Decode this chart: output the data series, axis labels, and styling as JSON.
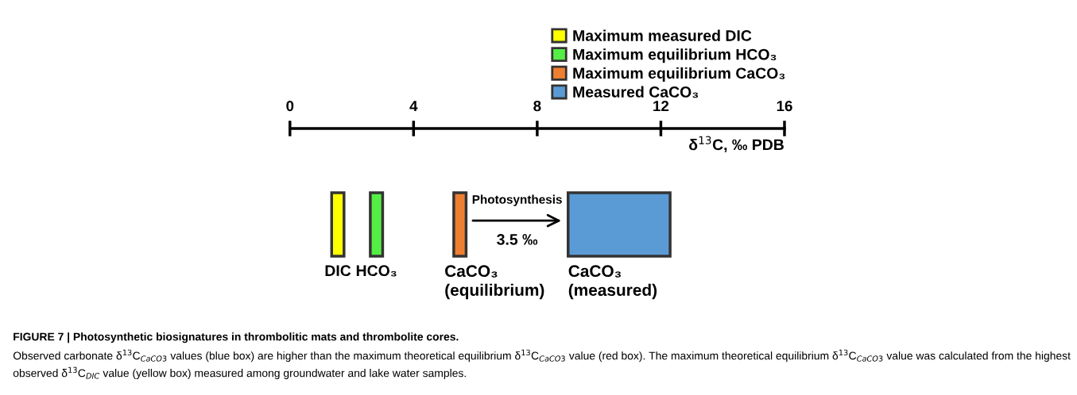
{
  "chart_data": {
    "type": "bar",
    "orientation": "horizontal",
    "categories": [
      null
    ],
    "series": [
      {
        "name": "Maximum measured DIC",
        "color": "#ffff00",
        "values": [
          0.4
        ],
        "base": [
          1.35
        ]
      },
      {
        "name": "Maximum equilibrium HCO₃",
        "color": "#55ee44",
        "values": [
          0.4
        ],
        "base": [
          2.6
        ]
      },
      {
        "name": "Maximum equilibrium CaCO₃",
        "color": "#ef7f30",
        "values": [
          0.4
        ],
        "base": [
          5.3
        ]
      },
      {
        "name": "Measured CaCO₃",
        "color": "#5b9bd5",
        "values": [
          3.3
        ],
        "base": [
          9.0
        ]
      }
    ],
    "xlim": [
      0,
      16
    ],
    "xticks": [
      0,
      4,
      8,
      12,
      16
    ],
    "xlabel": "δ$^{13}$C, ‰ PDB",
    "tick_labels": "x",
    "legend": "top",
    "grid": false,
    "annotations": [
      "DIC",
      "HCO₃",
      "CaCO₃\n(equilibrium)",
      "CaCO₃\n(measured)",
      "Photosynthesis",
      "3.5 ‰",
      "FIGURE 7 | Photosynthetic biosignatures in thrombolitic mats and thrombolite cores.",
      "Observed carbonate δ$^{13}$C$_{CaCO3}$ values (blue box) are higher than the maximum theoretical equilibrium δ$^{13}$C$_{CaCO3}$ value (red box). The maximum theoretical equilibrium δ$^{13}$C$_{CaCO3}$ value was calculated from the highest observed δ$^{13}$C$_{DIC}$ value (yellow box) measured among groundwater and lake water samples."
    ]
  }
}
